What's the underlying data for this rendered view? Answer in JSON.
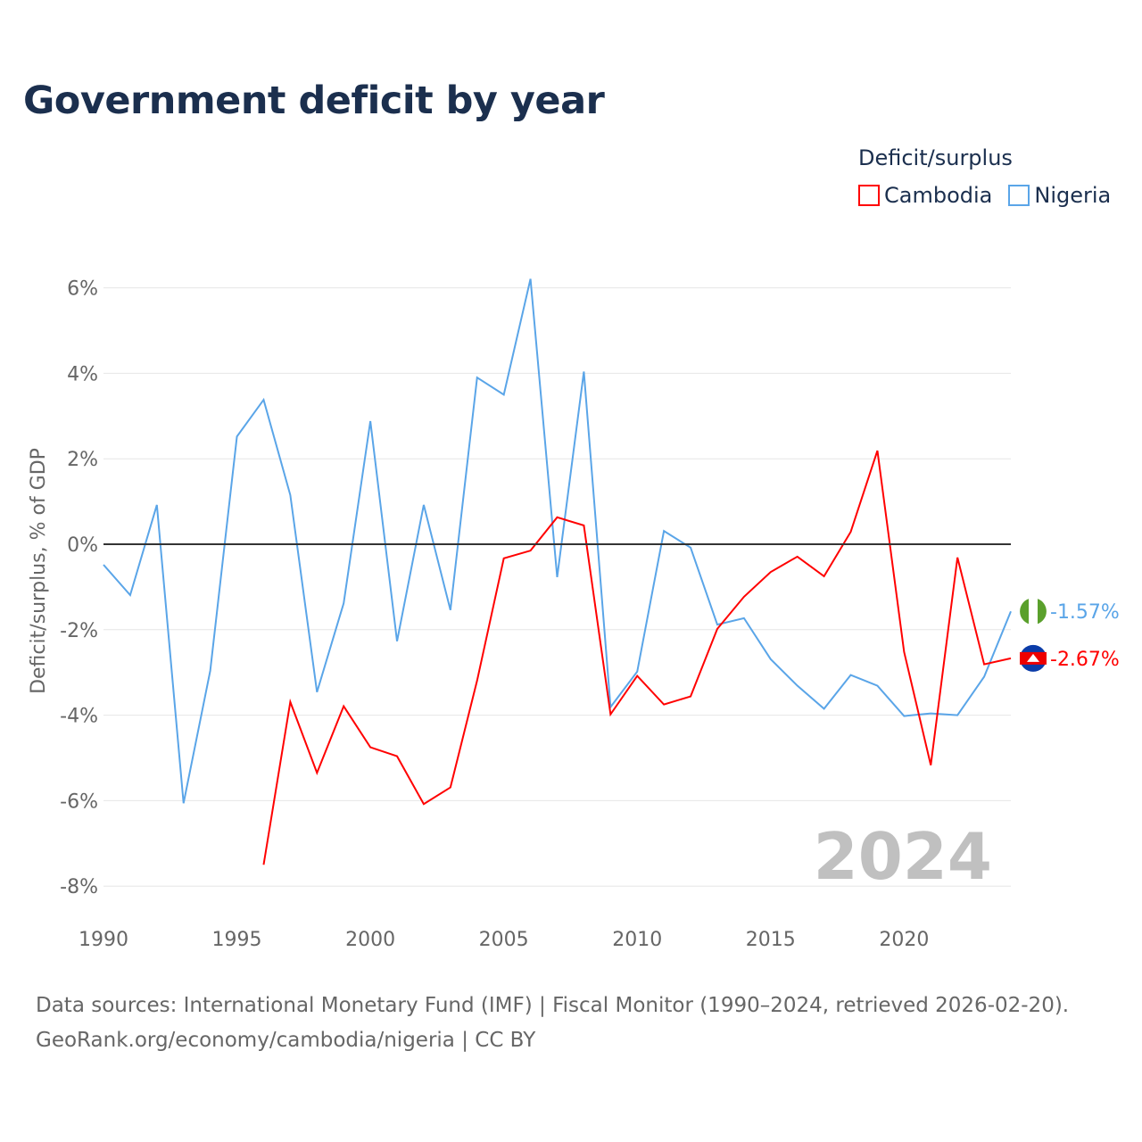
{
  "title": "Government deficit by year",
  "legend": {
    "title": "Deficit/surplus",
    "items": [
      {
        "name": "Cambodia",
        "color": "#ff0000"
      },
      {
        "name": "Nigeria",
        "color": "#5aa5e8"
      }
    ]
  },
  "footer": {
    "line1": "Data sources: International Monetary Fund (IMF) | Fiscal Monitor (1990–2024, retrieved 2026-02-20).",
    "line2": "GeoRank.org/economy/cambodia/nigeria | CC BY"
  },
  "chart_data": {
    "type": "line",
    "title": "Government deficit by year",
    "xlabel": "",
    "ylabel": "Deficit/surplus, % of GDP",
    "xlim": [
      1990,
      2024
    ],
    "ylim": [
      -8,
      6
    ],
    "xticks": [
      1990,
      1995,
      2000,
      2005,
      2010,
      2015,
      2020
    ],
    "xtick_labels": [
      "1990",
      "1995",
      "2000",
      "2005",
      "2010",
      "2015",
      "2020"
    ],
    "yticks": [
      6,
      4,
      2,
      0,
      -2,
      -4,
      -6,
      -8
    ],
    "ytick_labels": [
      "6%",
      "4%",
      "2%",
      "0%",
      "-2%",
      "-4%",
      "-6%",
      "-8%"
    ],
    "grid": true,
    "legend_position": "top-right",
    "year_watermark": "2024",
    "series": [
      {
        "name": "Nigeria",
        "color": "#5aa5e8",
        "end_label": "-1.57%",
        "x": [
          1990,
          1991,
          1992,
          1993,
          1994,
          1995,
          1996,
          1997,
          1998,
          1999,
          2000,
          2001,
          2002,
          2003,
          2004,
          2005,
          2006,
          2007,
          2008,
          2009,
          2010,
          2011,
          2012,
          2013,
          2014,
          2015,
          2016,
          2017,
          2018,
          2019,
          2020,
          2021,
          2022,
          2023,
          2024
        ],
        "values": [
          -0.48,
          -1.19,
          0.92,
          -6.06,
          -2.96,
          2.52,
          3.38,
          1.15,
          -3.46,
          -1.38,
          2.88,
          -2.27,
          0.92,
          -1.54,
          3.9,
          3.5,
          6.21,
          -0.77,
          4.04,
          -3.81,
          -2.98,
          0.31,
          -0.08,
          -1.88,
          -1.73,
          -2.69,
          -3.31,
          -3.85,
          -3.06,
          -3.31,
          -4.02,
          -3.96,
          -4.0,
          -3.1,
          -1.57
        ]
      },
      {
        "name": "Cambodia",
        "color": "#ff0000",
        "end_label": "-2.67%",
        "x": [
          1996,
          1997,
          1998,
          1999,
          2000,
          2001,
          2002,
          2003,
          2004,
          2005,
          2006,
          2007,
          2008,
          2009,
          2010,
          2011,
          2012,
          2013,
          2014,
          2015,
          2016,
          2017,
          2018,
          2019,
          2020,
          2021,
          2022,
          2023,
          2024
        ],
        "values": [
          -7.5,
          -3.69,
          -5.35,
          -3.79,
          -4.75,
          -4.96,
          -6.08,
          -5.69,
          -3.19,
          -0.33,
          -0.15,
          0.63,
          0.44,
          -3.98,
          -3.08,
          -3.75,
          -3.56,
          -1.98,
          -1.23,
          -0.65,
          -0.29,
          -0.75,
          0.29,
          2.19,
          -2.52,
          -5.17,
          -0.31,
          -2.81,
          -2.67
        ]
      }
    ]
  }
}
